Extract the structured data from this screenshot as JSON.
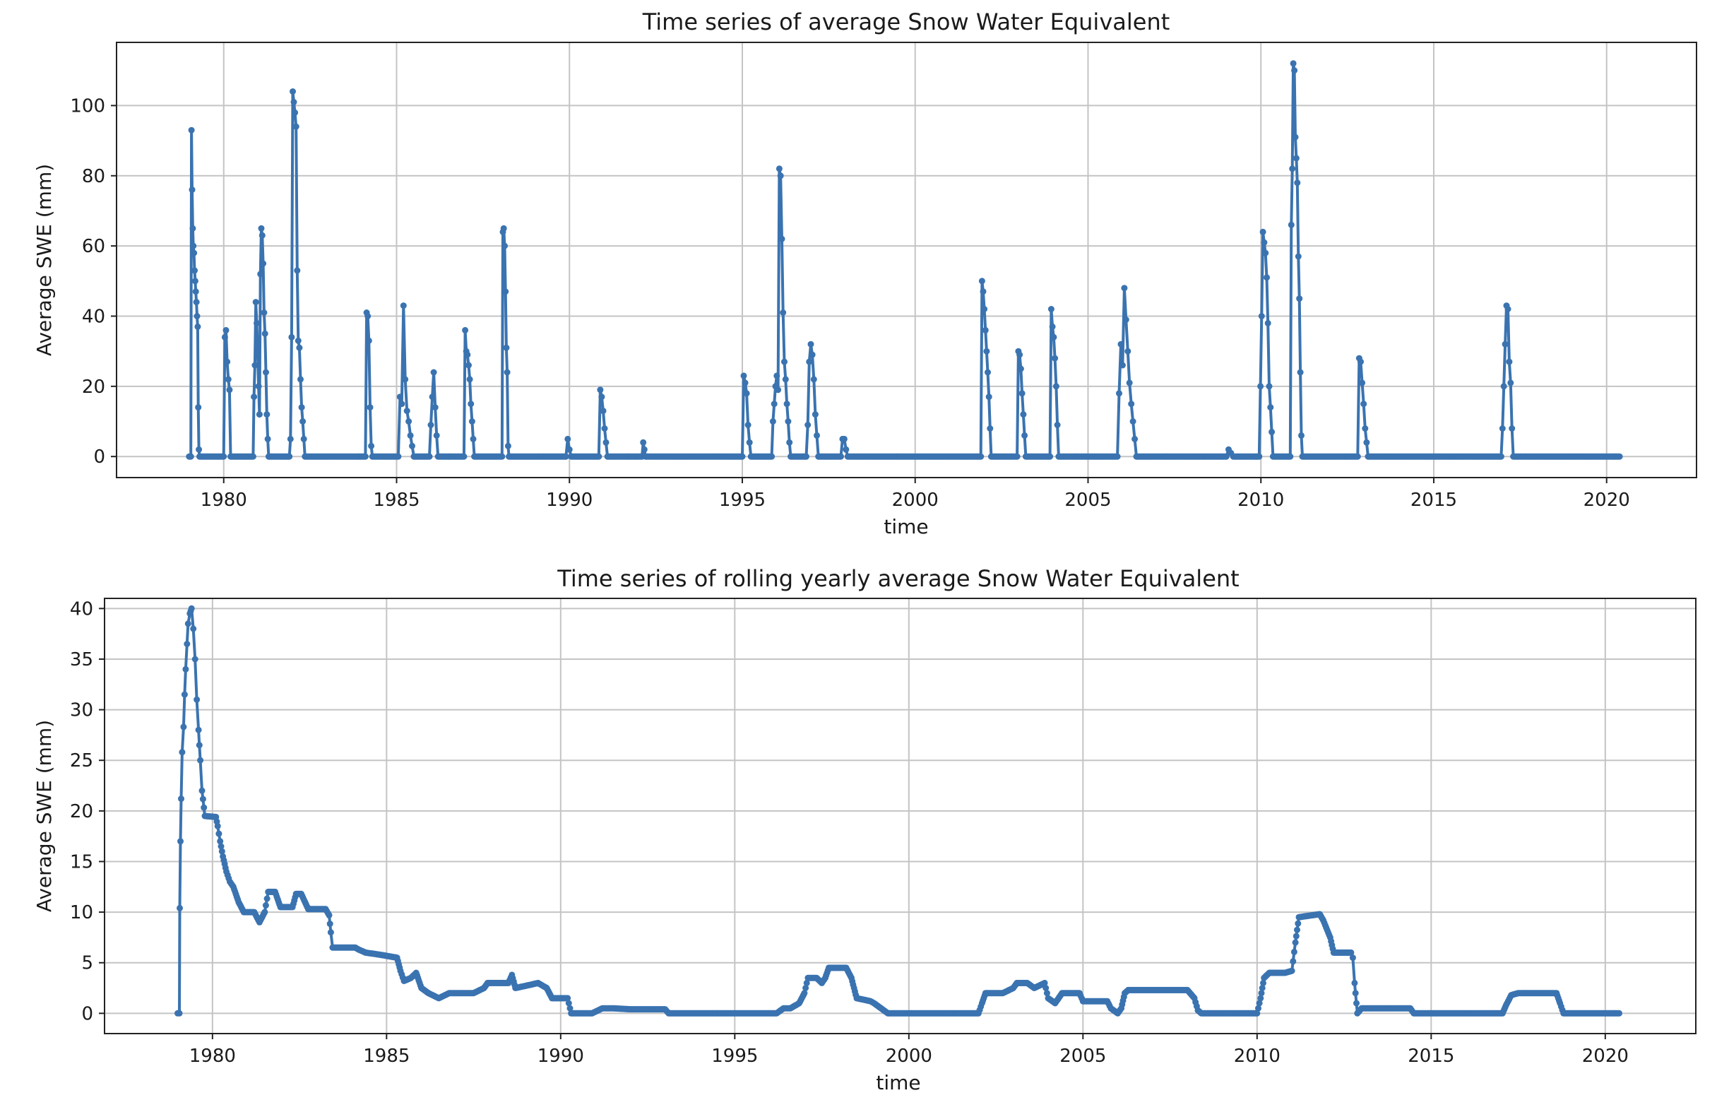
{
  "colors": {
    "series": "#3a73b0",
    "grid": "#c4c4c4",
    "frame": "#222222",
    "background": "#ffffff"
  },
  "chart_data": [
    {
      "type": "line",
      "title": "Time series of average Snow Water Equivalent",
      "xlabel": "time",
      "ylabel": "Average SWE (mm)",
      "xlim": [
        1976.9,
        2022.6
      ],
      "ylim": [
        -6,
        118
      ],
      "xticks": [
        1980,
        1985,
        1990,
        1995,
        2000,
        2005,
        2010,
        2015,
        2020
      ],
      "xtick_labels": [
        "1980",
        "1985",
        "1990",
        "1995",
        "2000",
        "2005",
        "2010",
        "2015",
        "2020"
      ],
      "yticks": [
        0,
        20,
        40,
        60,
        80,
        100
      ],
      "ytick_labels": [
        "0",
        "20",
        "40",
        "60",
        "80",
        "100"
      ],
      "grid": true,
      "markers": true,
      "x_range": [
        1979.0,
        2020.4
      ],
      "baseline": 0,
      "events": [
        [
          1979.05,
          1979.3,
          [
            0,
            93,
            76,
            65,
            60,
            58,
            53,
            50,
            47,
            44,
            40,
            37,
            14,
            2,
            0
          ]
        ],
        [
          1980.0,
          1980.2,
          [
            0,
            34,
            36,
            27,
            22,
            19,
            0
          ]
        ],
        [
          1980.85,
          1981.3,
          [
            0,
            17,
            26,
            44,
            38,
            30,
            20,
            12,
            52,
            65,
            63,
            55,
            41,
            35,
            24,
            12,
            5,
            0
          ]
        ],
        [
          1981.9,
          1982.35,
          [
            0,
            5,
            34,
            104,
            101,
            98,
            94,
            53,
            33,
            31,
            22,
            14,
            10,
            5,
            0
          ]
        ],
        [
          1984.1,
          1984.3,
          [
            0,
            41,
            40,
            33,
            14,
            3,
            0
          ]
        ],
        [
          1985.05,
          1985.5,
          [
            0,
            17,
            15,
            43,
            22,
            13,
            10,
            6,
            3,
            0
          ]
        ],
        [
          1985.95,
          1986.2,
          [
            0,
            9,
            17,
            24,
            14,
            6,
            0
          ]
        ],
        [
          1986.95,
          1987.25,
          [
            0,
            36,
            30,
            29,
            26,
            22,
            15,
            10,
            5,
            0
          ]
        ],
        [
          1988.05,
          1988.25,
          [
            0,
            64,
            65,
            60,
            47,
            31,
            24,
            3,
            0
          ]
        ],
        [
          1989.9,
          1990.05,
          [
            0,
            5,
            2,
            0
          ]
        ],
        [
          1990.85,
          1991.1,
          [
            0,
            19,
            17,
            13,
            8,
            4,
            0
          ]
        ],
        [
          1992.1,
          1992.2,
          [
            0,
            4,
            2,
            0
          ]
        ],
        [
          1995.0,
          1995.25,
          [
            0,
            23,
            21,
            18,
            9,
            4,
            0
          ]
        ],
        [
          1995.85,
          1996.4,
          [
            0,
            10,
            15,
            20,
            23,
            19,
            82,
            80,
            62,
            41,
            27,
            22,
            15,
            10,
            4,
            0
          ]
        ],
        [
          1996.85,
          1997.2,
          [
            0,
            9,
            27,
            32,
            29,
            22,
            12,
            6,
            0
          ]
        ],
        [
          1997.85,
          1998.05,
          [
            0,
            5,
            5,
            2,
            0
          ]
        ],
        [
          2001.9,
          2002.2,
          [
            0,
            50,
            47,
            42,
            36,
            30,
            24,
            17,
            8,
            0
          ]
        ],
        [
          2002.95,
          2003.2,
          [
            0,
            30,
            29,
            25,
            18,
            12,
            6,
            0
          ]
        ],
        [
          2003.9,
          2004.15,
          [
            0,
            42,
            37,
            34,
            28,
            20,
            9,
            0
          ]
        ],
        [
          2005.85,
          2006.4,
          [
            0,
            18,
            32,
            26,
            48,
            39,
            30,
            21,
            15,
            10,
            5,
            0
          ]
        ],
        [
          2009.0,
          2009.2,
          [
            0,
            2,
            1,
            0
          ]
        ],
        [
          2009.95,
          2010.35,
          [
            0,
            20,
            40,
            64,
            61,
            58,
            51,
            38,
            20,
            14,
            7,
            0
          ]
        ],
        [
          2010.85,
          2011.2,
          [
            0,
            66,
            82,
            112,
            110,
            91,
            85,
            78,
            57,
            45,
            24,
            6,
            0
          ]
        ],
        [
          2012.8,
          2013.1,
          [
            0,
            28,
            27,
            21,
            15,
            8,
            4,
            0
          ]
        ],
        [
          2016.95,
          2017.3,
          [
            0,
            8,
            20,
            32,
            43,
            42,
            27,
            21,
            8,
            0
          ]
        ]
      ]
    },
    {
      "type": "line",
      "title": "Time series of rolling yearly average Snow Water Equivalent",
      "xlabel": "time",
      "ylabel": "Average SWE (mm)",
      "xlim": [
        1976.9,
        2022.6
      ],
      "ylim": [
        -2,
        41
      ],
      "xticks": [
        1980,
        1985,
        1990,
        1995,
        2000,
        2005,
        2010,
        2015,
        2020
      ],
      "xtick_labels": [
        "1980",
        "1985",
        "1990",
        "1995",
        "2000",
        "2005",
        "2010",
        "2015",
        "2020"
      ],
      "yticks": [
        0,
        5,
        10,
        15,
        20,
        25,
        30,
        35,
        40
      ],
      "ytick_labels": [
        "0",
        "5",
        "10",
        "15",
        "20",
        "25",
        "30",
        "35",
        "40"
      ],
      "grid": true,
      "markers": true,
      "points": [
        [
          1979.0,
          0
        ],
        [
          1979.05,
          0
        ],
        [
          1979.06,
          10.4
        ],
        [
          1979.08,
          17
        ],
        [
          1979.1,
          21.2
        ],
        [
          1979.13,
          25.8
        ],
        [
          1979.17,
          28.3
        ],
        [
          1979.2,
          31.5
        ],
        [
          1979.23,
          34
        ],
        [
          1979.27,
          36.5
        ],
        [
          1979.3,
          38.5
        ],
        [
          1979.35,
          39.5
        ],
        [
          1979.4,
          40
        ],
        [
          1979.45,
          38
        ],
        [
          1979.5,
          35
        ],
        [
          1979.55,
          31
        ],
        [
          1979.6,
          28
        ],
        [
          1979.65,
          25
        ],
        [
          1979.7,
          22
        ],
        [
          1979.78,
          19.5
        ],
        [
          1980.1,
          19.4
        ],
        [
          1980.15,
          18.5
        ],
        [
          1980.22,
          17
        ],
        [
          1980.3,
          15.5
        ],
        [
          1980.4,
          14
        ],
        [
          1980.5,
          13
        ],
        [
          1980.6,
          12.5
        ],
        [
          1980.75,
          11
        ],
        [
          1980.9,
          10
        ],
        [
          1981.2,
          10
        ],
        [
          1981.35,
          9
        ],
        [
          1981.5,
          10
        ],
        [
          1981.6,
          12
        ],
        [
          1981.8,
          12
        ],
        [
          1981.95,
          10.5
        ],
        [
          1982.3,
          10.5
        ],
        [
          1982.4,
          11.8
        ],
        [
          1982.55,
          11.8
        ],
        [
          1982.75,
          10.3
        ],
        [
          1983.25,
          10.3
        ],
        [
          1983.35,
          9.7
        ],
        [
          1983.4,
          8
        ],
        [
          1983.45,
          6.5
        ],
        [
          1984.1,
          6.5
        ],
        [
          1984.2,
          6.3
        ],
        [
          1984.4,
          6
        ],
        [
          1984.8,
          5.8
        ],
        [
          1985.3,
          5.5
        ],
        [
          1985.4,
          4.2
        ],
        [
          1985.5,
          3.2
        ],
        [
          1985.7,
          3.5
        ],
        [
          1985.85,
          4
        ],
        [
          1986.0,
          2.5
        ],
        [
          1986.2,
          2
        ],
        [
          1986.5,
          1.5
        ],
        [
          1986.8,
          2
        ],
        [
          1987.5,
          2
        ],
        [
          1987.8,
          2.5
        ],
        [
          1987.9,
          3
        ],
        [
          1988.5,
          3
        ],
        [
          1988.6,
          3.8
        ],
        [
          1988.7,
          2.5
        ],
        [
          1989.1,
          2.8
        ],
        [
          1989.35,
          3
        ],
        [
          1989.6,
          2.5
        ],
        [
          1989.75,
          1.5
        ],
        [
          1990.0,
          1.5
        ],
        [
          1990.2,
          1.5
        ],
        [
          1990.3,
          0
        ],
        [
          1990.9,
          0
        ],
        [
          1991.2,
          0.5
        ],
        [
          1991.5,
          0.5
        ],
        [
          1992.0,
          0.4
        ],
        [
          1993.0,
          0.4
        ],
        [
          1993.1,
          0
        ],
        [
          1996.2,
          0
        ],
        [
          1996.4,
          0.5
        ],
        [
          1996.6,
          0.5
        ],
        [
          1996.85,
          1
        ],
        [
          1997.0,
          2
        ],
        [
          1997.1,
          3.5
        ],
        [
          1997.35,
          3.5
        ],
        [
          1997.5,
          3
        ],
        [
          1997.6,
          3.5
        ],
        [
          1997.7,
          4.5
        ],
        [
          1998.2,
          4.5
        ],
        [
          1998.35,
          3.5
        ],
        [
          1998.5,
          1.5
        ],
        [
          1998.9,
          1.2
        ],
        [
          1999.0,
          1
        ],
        [
          1999.2,
          0.5
        ],
        [
          1999.4,
          0
        ],
        [
          2002.0,
          0
        ],
        [
          2002.1,
          1
        ],
        [
          2002.2,
          2
        ],
        [
          2002.7,
          2
        ],
        [
          2003.0,
          2.5
        ],
        [
          2003.1,
          3
        ],
        [
          2003.4,
          3
        ],
        [
          2003.6,
          2.5
        ],
        [
          2003.9,
          3
        ],
        [
          2004.0,
          1.5
        ],
        [
          2004.2,
          1
        ],
        [
          2004.4,
          2
        ],
        [
          2004.9,
          2
        ],
        [
          2005.0,
          1.2
        ],
        [
          2005.7,
          1.2
        ],
        [
          2005.8,
          0.5
        ],
        [
          2006.0,
          0
        ],
        [
          2006.1,
          0.5
        ],
        [
          2006.2,
          2
        ],
        [
          2006.3,
          2.3
        ],
        [
          2008.0,
          2.3
        ],
        [
          2008.2,
          1.5
        ],
        [
          2008.3,
          0.3
        ],
        [
          2008.4,
          0
        ],
        [
          2010.0,
          0
        ],
        [
          2010.1,
          1.5
        ],
        [
          2010.2,
          3.5
        ],
        [
          2010.35,
          4
        ],
        [
          2010.8,
          4
        ],
        [
          2011.0,
          4.2
        ],
        [
          2011.1,
          7
        ],
        [
          2011.2,
          9.5
        ],
        [
          2011.8,
          9.8
        ],
        [
          2011.9,
          9.2
        ],
        [
          2012.1,
          7.5
        ],
        [
          2012.2,
          6
        ],
        [
          2012.7,
          6
        ],
        [
          2012.75,
          5.5
        ],
        [
          2012.8,
          3
        ],
        [
          2012.88,
          0
        ],
        [
          2013.0,
          0.5
        ],
        [
          2014.4,
          0.5
        ],
        [
          2014.5,
          0
        ],
        [
          2017.05,
          0
        ],
        [
          2017.15,
          0.8
        ],
        [
          2017.3,
          1.8
        ],
        [
          2017.5,
          2
        ],
        [
          2018.6,
          2
        ],
        [
          2018.7,
          1
        ],
        [
          2018.8,
          0
        ],
        [
          2020.4,
          0
        ]
      ]
    }
  ]
}
